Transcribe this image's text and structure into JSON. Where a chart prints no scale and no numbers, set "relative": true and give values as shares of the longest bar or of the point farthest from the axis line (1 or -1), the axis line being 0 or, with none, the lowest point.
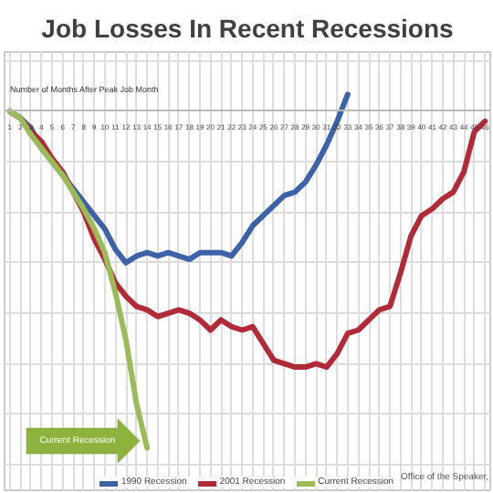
{
  "chart_data": {
    "type": "line",
    "title": "Job Losses In Recent Recessions",
    "xlabel": "Number of Months After Peak Job Month",
    "relative": true,
    "x": [
      1,
      2,
      3,
      4,
      5,
      6,
      7,
      8,
      9,
      10,
      11,
      12,
      13,
      14,
      15,
      16,
      17,
      18,
      19,
      20,
      21,
      22,
      23,
      24,
      25,
      26,
      27,
      28,
      29,
      30,
      31,
      32,
      33,
      34,
      35,
      36,
      37,
      38,
      39,
      40,
      41,
      42,
      43,
      44,
      45,
      46
    ],
    "xlim": [
      0.5,
      46.5
    ],
    "xticks": [
      1,
      2,
      3,
      4,
      5,
      6,
      7,
      8,
      9,
      10,
      11,
      12,
      13,
      14,
      15,
      16,
      17,
      18,
      19,
      20,
      21,
      22,
      23,
      24,
      25,
      26,
      27,
      28,
      29,
      30,
      31,
      32,
      33,
      34,
      35,
      36,
      37,
      38,
      39,
      40,
      41,
      42,
      43,
      44,
      45,
      46
    ],
    "series": [
      {
        "name": "1990 Recession",
        "color": "#3d62a8",
        "values": [
          0,
          -0.02,
          -0.05,
          -0.11,
          -0.15,
          -0.19,
          -0.23,
          -0.27,
          -0.31,
          -0.35,
          -0.41,
          -0.45,
          -0.43,
          -0.42,
          -0.43,
          -0.42,
          -0.43,
          -0.44,
          -0.42,
          -0.42,
          -0.42,
          -0.43,
          -0.39,
          -0.34,
          -0.31,
          -0.28,
          -0.25,
          -0.24,
          -0.21,
          -0.16,
          -0.1,
          -0.03,
          0.05,
          null,
          null,
          null,
          null,
          null,
          null,
          null,
          null,
          null,
          null,
          null,
          null,
          null
        ]
      },
      {
        "name": "2001 Recession",
        "color": "#b02a37",
        "values": [
          0,
          -0.02,
          -0.06,
          -0.09,
          -0.14,
          -0.18,
          -0.24,
          -0.3,
          -0.38,
          -0.44,
          -0.51,
          -0.55,
          -0.58,
          -0.59,
          -0.61,
          -0.6,
          -0.59,
          -0.6,
          -0.62,
          -0.65,
          -0.62,
          -0.64,
          -0.65,
          -0.64,
          -0.69,
          -0.74,
          -0.75,
          -0.76,
          -0.76,
          -0.75,
          -0.76,
          -0.72,
          -0.66,
          -0.65,
          -0.62,
          -0.59,
          -0.58,
          -0.48,
          -0.37,
          -0.31,
          -0.29,
          -0.26,
          -0.24,
          -0.18,
          -0.06,
          -0.03
        ]
      },
      {
        "name": "Current Recession",
        "color": "#9bbb59",
        "values": [
          0,
          -0.02,
          -0.07,
          -0.11,
          -0.15,
          -0.19,
          -0.24,
          -0.29,
          -0.35,
          -0.42,
          -0.54,
          -0.68,
          -0.87,
          -1,
          null,
          null,
          null,
          null,
          null,
          null,
          null,
          null,
          null,
          null,
          null,
          null,
          null,
          null,
          null,
          null,
          null,
          null,
          null,
          null,
          null,
          null,
          null,
          null,
          null,
          null,
          null,
          null,
          null,
          null,
          null,
          null
        ]
      }
    ],
    "annotations": [
      "Current Recession",
      "Office of the Speaker,"
    ],
    "grid": true,
    "legend": "bottom"
  }
}
